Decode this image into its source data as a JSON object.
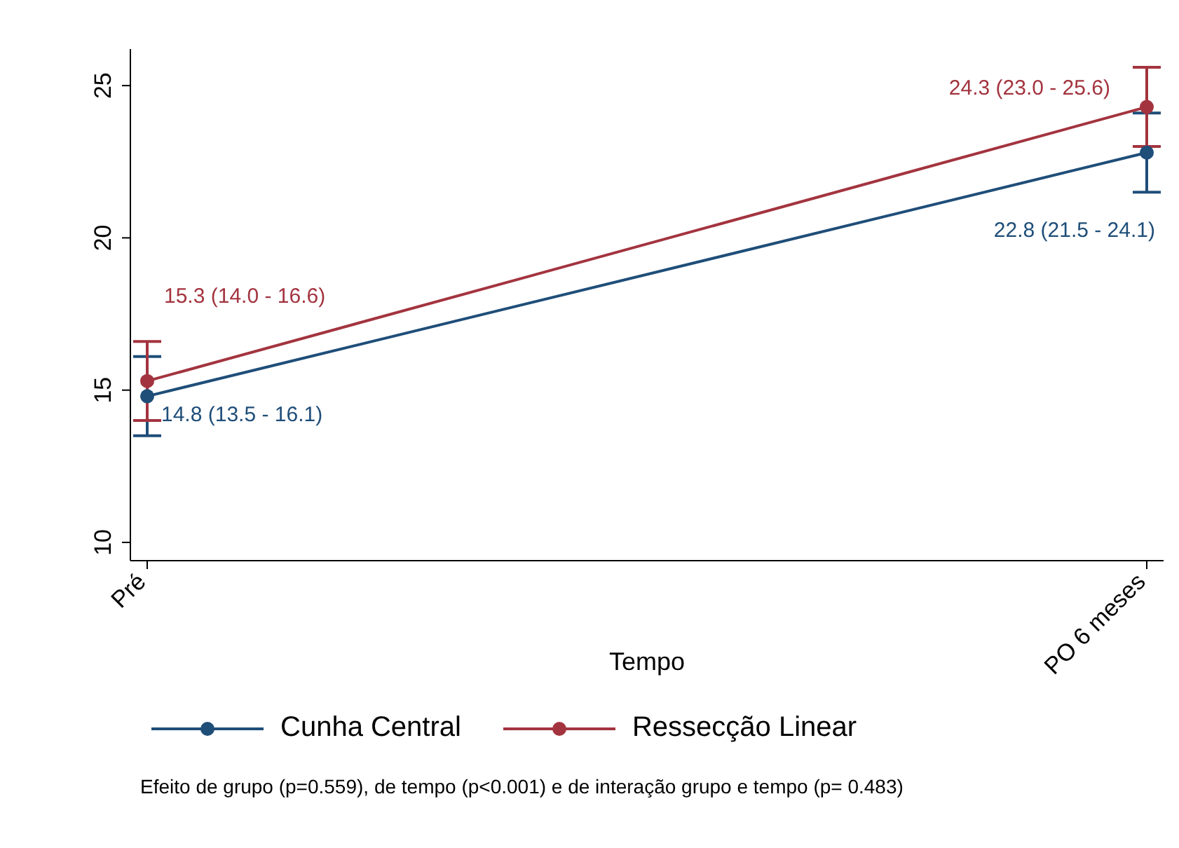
{
  "chart_data": {
    "type": "line",
    "xlabel": "Tempo",
    "categories": [
      "Pré",
      "PO 6 meses"
    ],
    "series": [
      {
        "name": "Cunha Central",
        "color": "#1f4e79",
        "values": [
          14.8,
          22.8
        ],
        "errors": [
          [
            13.5,
            16.1
          ],
          [
            21.5,
            24.1
          ]
        ],
        "value_labels": [
          "14.8 (13.5 - 16.1)",
          "22.8 (21.5 - 24.1)"
        ]
      },
      {
        "name": "Ressecção Linear",
        "color": "#a3343f",
        "values": [
          15.3,
          24.3
        ],
        "errors": [
          [
            14.0,
            16.6
          ],
          [
            23.0,
            25.6
          ]
        ],
        "value_labels": [
          "15.3 (14.0 -  16.6)",
          "24.3 (23.0 -  25.6)"
        ]
      }
    ],
    "ylim": [
      9.4,
      26.2
    ],
    "yticks": [
      10,
      15,
      20,
      25
    ],
    "grid": false,
    "legend": "bottom",
    "marker": "circle",
    "line_style": "solid",
    "annotations": [
      "Efeito de grupo (p=0.559), de tempo (p<0.001) e de interação grupo e tempo (p= 0.483)"
    ]
  }
}
